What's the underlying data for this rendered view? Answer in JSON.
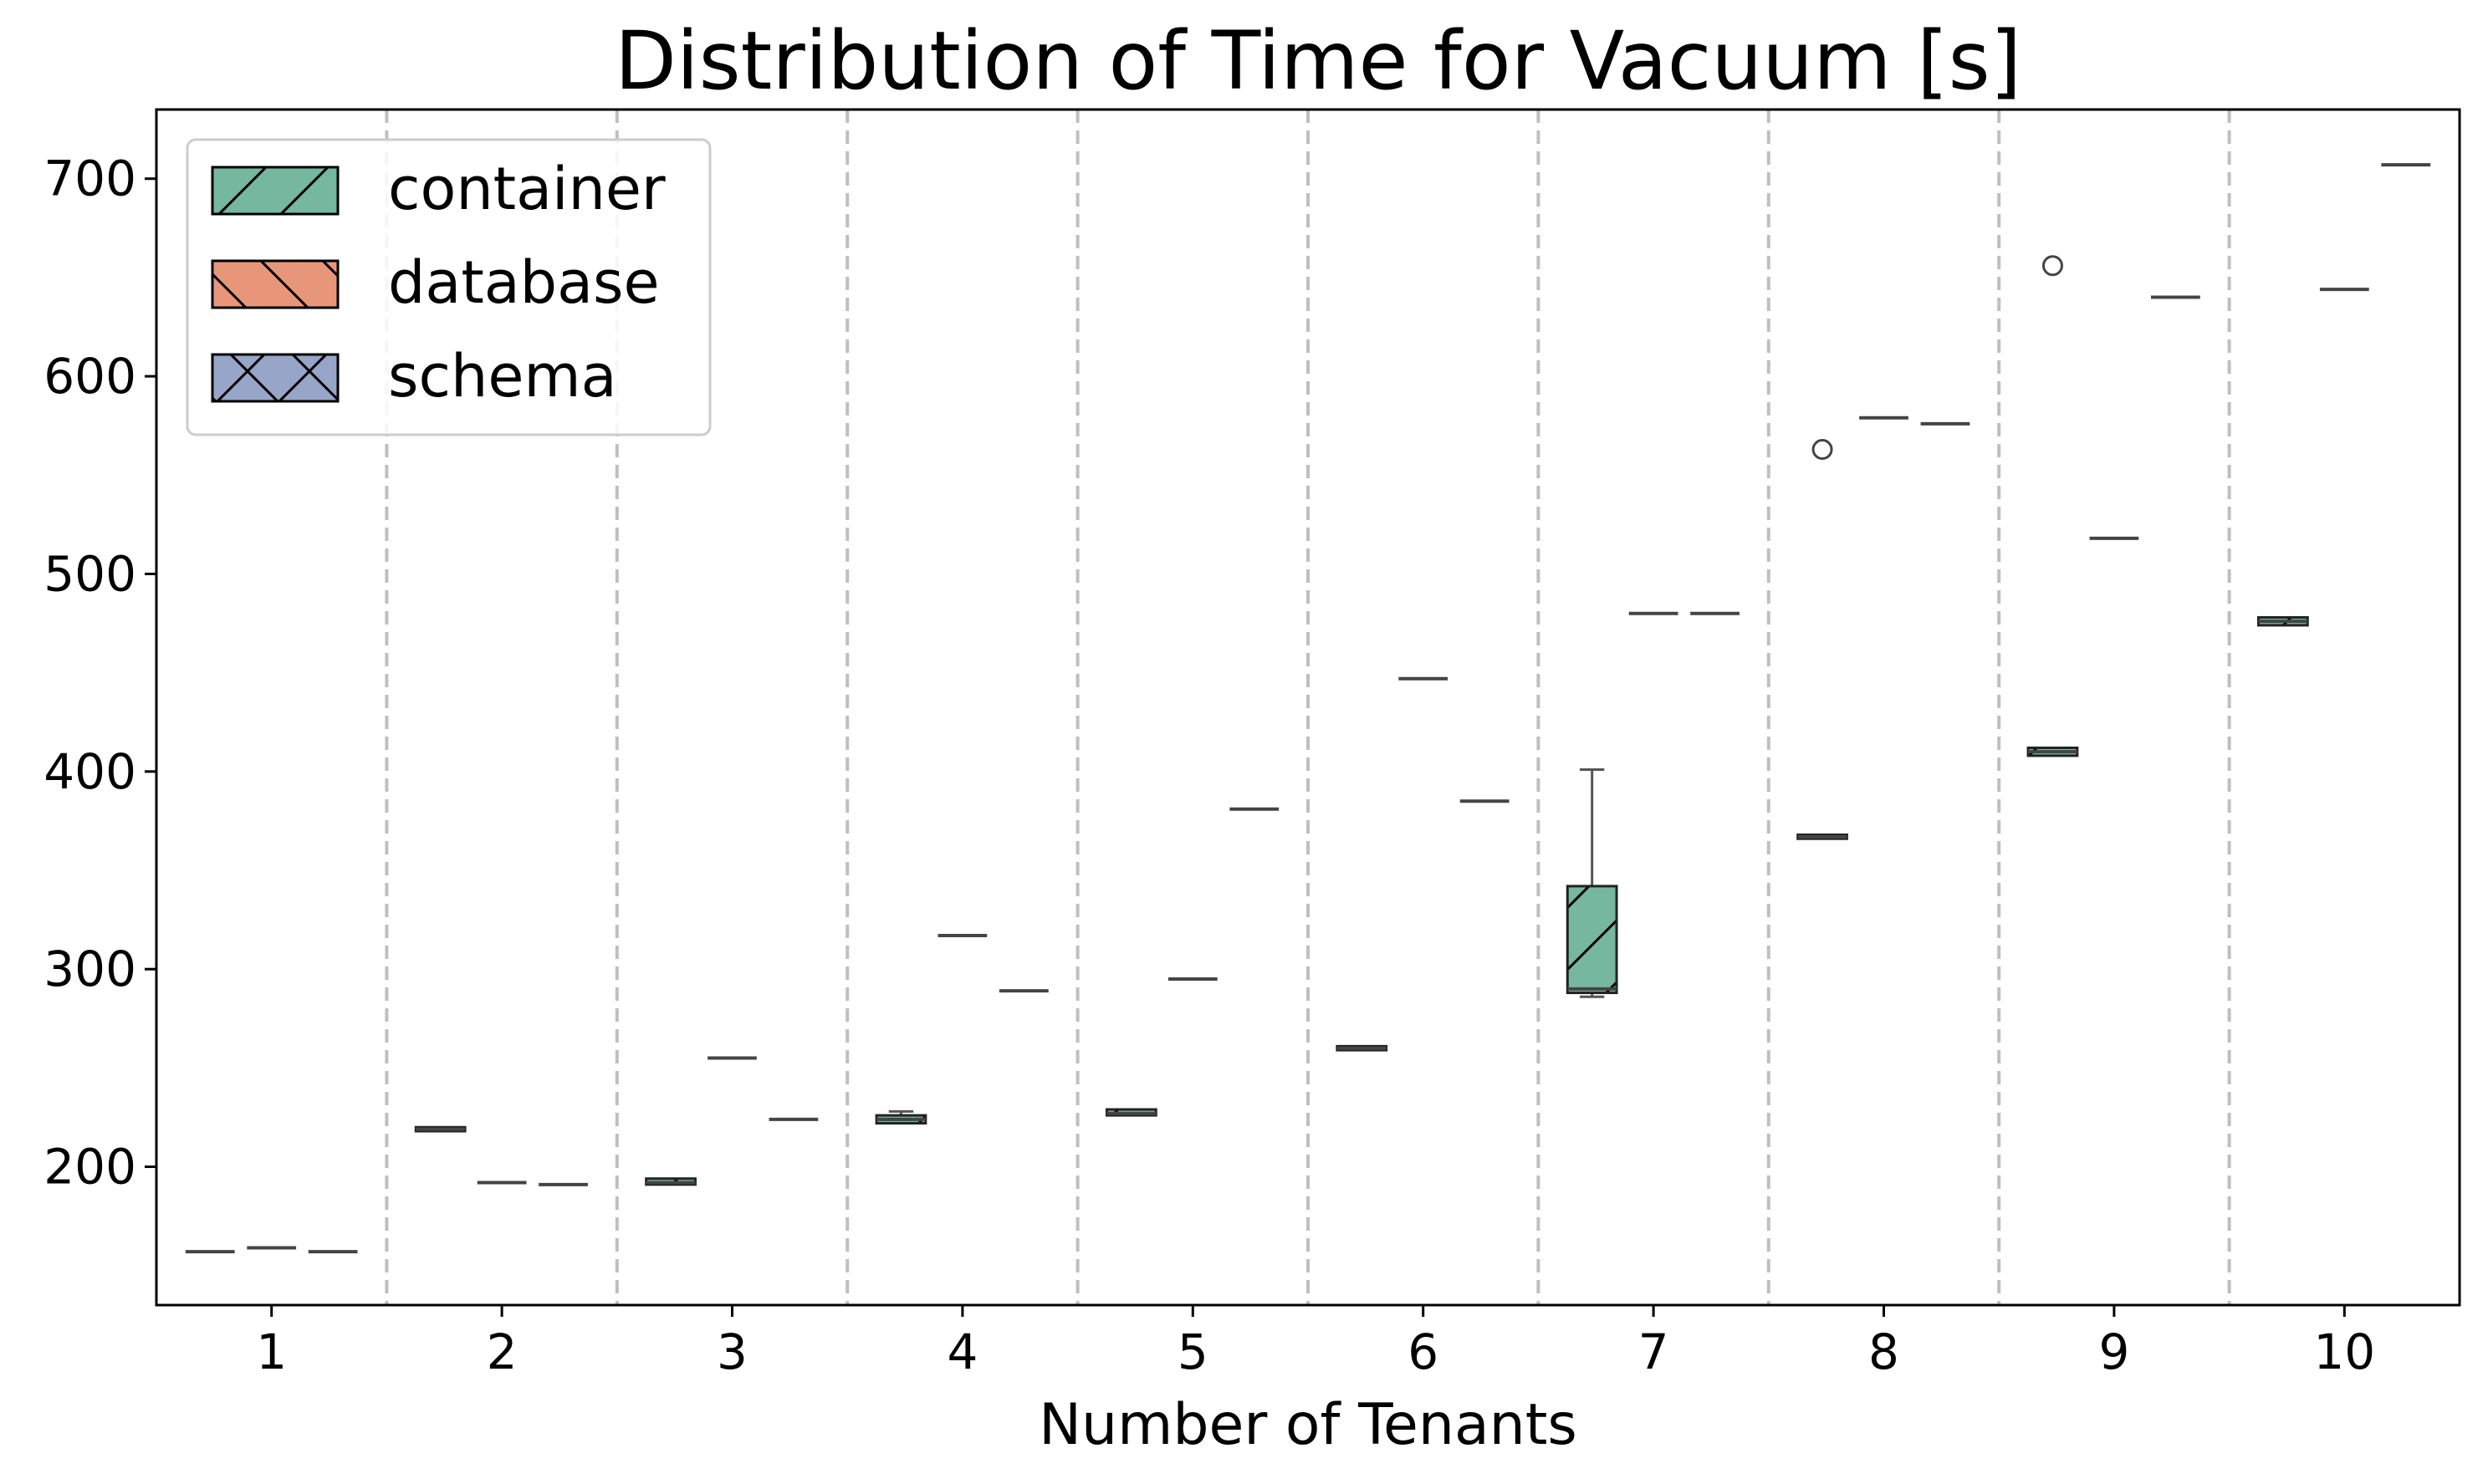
{
  "chart_data": {
    "type": "boxplot",
    "title": "Distribution of Time for Vacuum [s]",
    "xlabel": "Number of Tenants",
    "ylabel": "",
    "ylim": [
      130,
      735
    ],
    "yticks": [
      200,
      300,
      400,
      500,
      600,
      700
    ],
    "categories": [
      "1",
      "2",
      "3",
      "4",
      "5",
      "6",
      "7",
      "8",
      "9",
      "10"
    ],
    "grid": "vertical dashed separators between groups",
    "legend_position": "top-left",
    "series": [
      {
        "name": "container",
        "color": "#76b7a0",
        "hatch": "/",
        "boxes": [
          {
            "whislo": 157,
            "q1": 157,
            "med": 157,
            "q3": 157,
            "whishi": 157,
            "fliers": []
          },
          {
            "whislo": 218,
            "q1": 218,
            "med": 219,
            "q3": 220,
            "whishi": 220,
            "fliers": []
          },
          {
            "whislo": 191,
            "q1": 191,
            "med": 192,
            "q3": 194,
            "whishi": 194,
            "fliers": []
          },
          {
            "whislo": 222,
            "q1": 222,
            "med": 224,
            "q3": 226,
            "whishi": 228,
            "fliers": []
          },
          {
            "whislo": 226,
            "q1": 226,
            "med": 227,
            "q3": 229,
            "whishi": 229,
            "fliers": []
          },
          {
            "whislo": 259,
            "q1": 259,
            "med": 260,
            "q3": 261,
            "whishi": 261,
            "fliers": []
          },
          {
            "whislo": 286,
            "q1": 288,
            "med": 290,
            "q3": 342,
            "whishi": 401,
            "fliers": []
          },
          {
            "whislo": 366,
            "q1": 366,
            "med": 367,
            "q3": 368,
            "whishi": 368,
            "fliers": [
              563
            ]
          },
          {
            "whislo": 408,
            "q1": 408,
            "med": 410,
            "q3": 412,
            "whishi": 412,
            "fliers": [
              656
            ]
          },
          {
            "whislo": 474,
            "q1": 474,
            "med": 476,
            "q3": 478,
            "whishi": 478,
            "fliers": []
          }
        ]
      },
      {
        "name": "database",
        "color": "#e8967a",
        "hatch": "\\",
        "boxes": [
          {
            "whislo": 159,
            "q1": 159,
            "med": 159,
            "q3": 159,
            "whishi": 159,
            "fliers": []
          },
          {
            "whislo": 192,
            "q1": 192,
            "med": 192,
            "q3": 192,
            "whishi": 192,
            "fliers": []
          },
          {
            "whislo": 255,
            "q1": 255,
            "med": 255,
            "q3": 255,
            "whishi": 255,
            "fliers": []
          },
          {
            "whislo": 317,
            "q1": 317,
            "med": 317,
            "q3": 317,
            "whishi": 317,
            "fliers": []
          },
          {
            "whislo": 295,
            "q1": 295,
            "med": 295,
            "q3": 295,
            "whishi": 295,
            "fliers": []
          },
          {
            "whislo": 447,
            "q1": 447,
            "med": 447,
            "q3": 447,
            "whishi": 447,
            "fliers": []
          },
          {
            "whislo": 480,
            "q1": 480,
            "med": 480,
            "q3": 480,
            "whishi": 480,
            "fliers": []
          },
          {
            "whislo": 579,
            "q1": 579,
            "med": 579,
            "q3": 579,
            "whishi": 579,
            "fliers": []
          },
          {
            "whislo": 518,
            "q1": 518,
            "med": 518,
            "q3": 518,
            "whishi": 518,
            "fliers": []
          },
          {
            "whislo": 644,
            "q1": 644,
            "med": 644,
            "q3": 644,
            "whishi": 644,
            "fliers": []
          }
        ]
      },
      {
        "name": "schema",
        "color": "#96a5c8",
        "hatch": "x",
        "boxes": [
          {
            "whislo": 157,
            "q1": 157,
            "med": 157,
            "q3": 157,
            "whishi": 157,
            "fliers": []
          },
          {
            "whislo": 191,
            "q1": 191,
            "med": 191,
            "q3": 191,
            "whishi": 191,
            "fliers": []
          },
          {
            "whislo": 224,
            "q1": 224,
            "med": 224,
            "q3": 224,
            "whishi": 224,
            "fliers": []
          },
          {
            "whislo": 289,
            "q1": 289,
            "med": 289,
            "q3": 289,
            "whishi": 289,
            "fliers": []
          },
          {
            "whislo": 381,
            "q1": 381,
            "med": 381,
            "q3": 381,
            "whishi": 381,
            "fliers": []
          },
          {
            "whislo": 385,
            "q1": 385,
            "med": 385,
            "q3": 385,
            "whishi": 385,
            "fliers": []
          },
          {
            "whislo": 480,
            "q1": 480,
            "med": 480,
            "q3": 480,
            "whishi": 480,
            "fliers": []
          },
          {
            "whislo": 576,
            "q1": 576,
            "med": 576,
            "q3": 576,
            "whishi": 576,
            "fliers": []
          },
          {
            "whislo": 640,
            "q1": 640,
            "med": 640,
            "q3": 640,
            "whishi": 640,
            "fliers": []
          },
          {
            "whislo": 707,
            "q1": 707,
            "med": 707,
            "q3": 707,
            "whishi": 707,
            "fliers": []
          }
        ]
      }
    ]
  }
}
